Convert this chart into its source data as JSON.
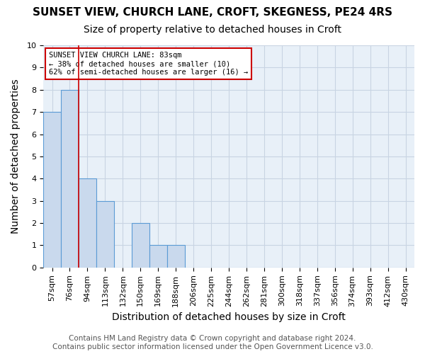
{
  "title": "SUNSET VIEW, CHURCH LANE, CROFT, SKEGNESS, PE24 4RS",
  "subtitle": "Size of property relative to detached houses in Croft",
  "xlabel": "Distribution of detached houses by size in Croft",
  "ylabel": "Number of detached properties",
  "bin_labels": [
    "57sqm",
    "76sqm",
    "94sqm",
    "113sqm",
    "132sqm",
    "150sqm",
    "169sqm",
    "188sqm",
    "206sqm",
    "225sqm",
    "244sqm",
    "262sqm",
    "281sqm",
    "300sqm",
    "318sqm",
    "337sqm",
    "356sqm",
    "374sqm",
    "393sqm",
    "412sqm",
    "430sqm"
  ],
  "bar_values": [
    7,
    8,
    4,
    3,
    0,
    2,
    1,
    1,
    0,
    0,
    0,
    0,
    0,
    0,
    0,
    0,
    0,
    0,
    0,
    0,
    0
  ],
  "bar_color": "#c9d9ed",
  "bar_edgecolor": "#5b9bd5",
  "red_line_x": 1.5,
  "annotation_title": "SUNSET VIEW CHURCH LANE: 83sqm",
  "annotation_line1": "← 38% of detached houses are smaller (10)",
  "annotation_line2": "62% of semi-detached houses are larger (16) →",
  "annotation_box_color": "#ffffff",
  "annotation_box_edgecolor": "#cc0000",
  "ylim": [
    0,
    10
  ],
  "yticks": [
    0,
    1,
    2,
    3,
    4,
    5,
    6,
    7,
    8,
    9,
    10
  ],
  "footer_line1": "Contains HM Land Registry data © Crown copyright and database right 2024.",
  "footer_line2": "Contains public sector information licensed under the Open Government Licence v3.0.",
  "background_color": "#ffffff",
  "plot_bg_color": "#e8f0f8",
  "grid_color": "#c8d4e3",
  "red_line_color": "#cc0000",
  "title_fontsize": 11,
  "subtitle_fontsize": 10,
  "axis_label_fontsize": 10,
  "tick_fontsize": 8,
  "annotation_fontsize": 7.5,
  "footer_fontsize": 7.5
}
